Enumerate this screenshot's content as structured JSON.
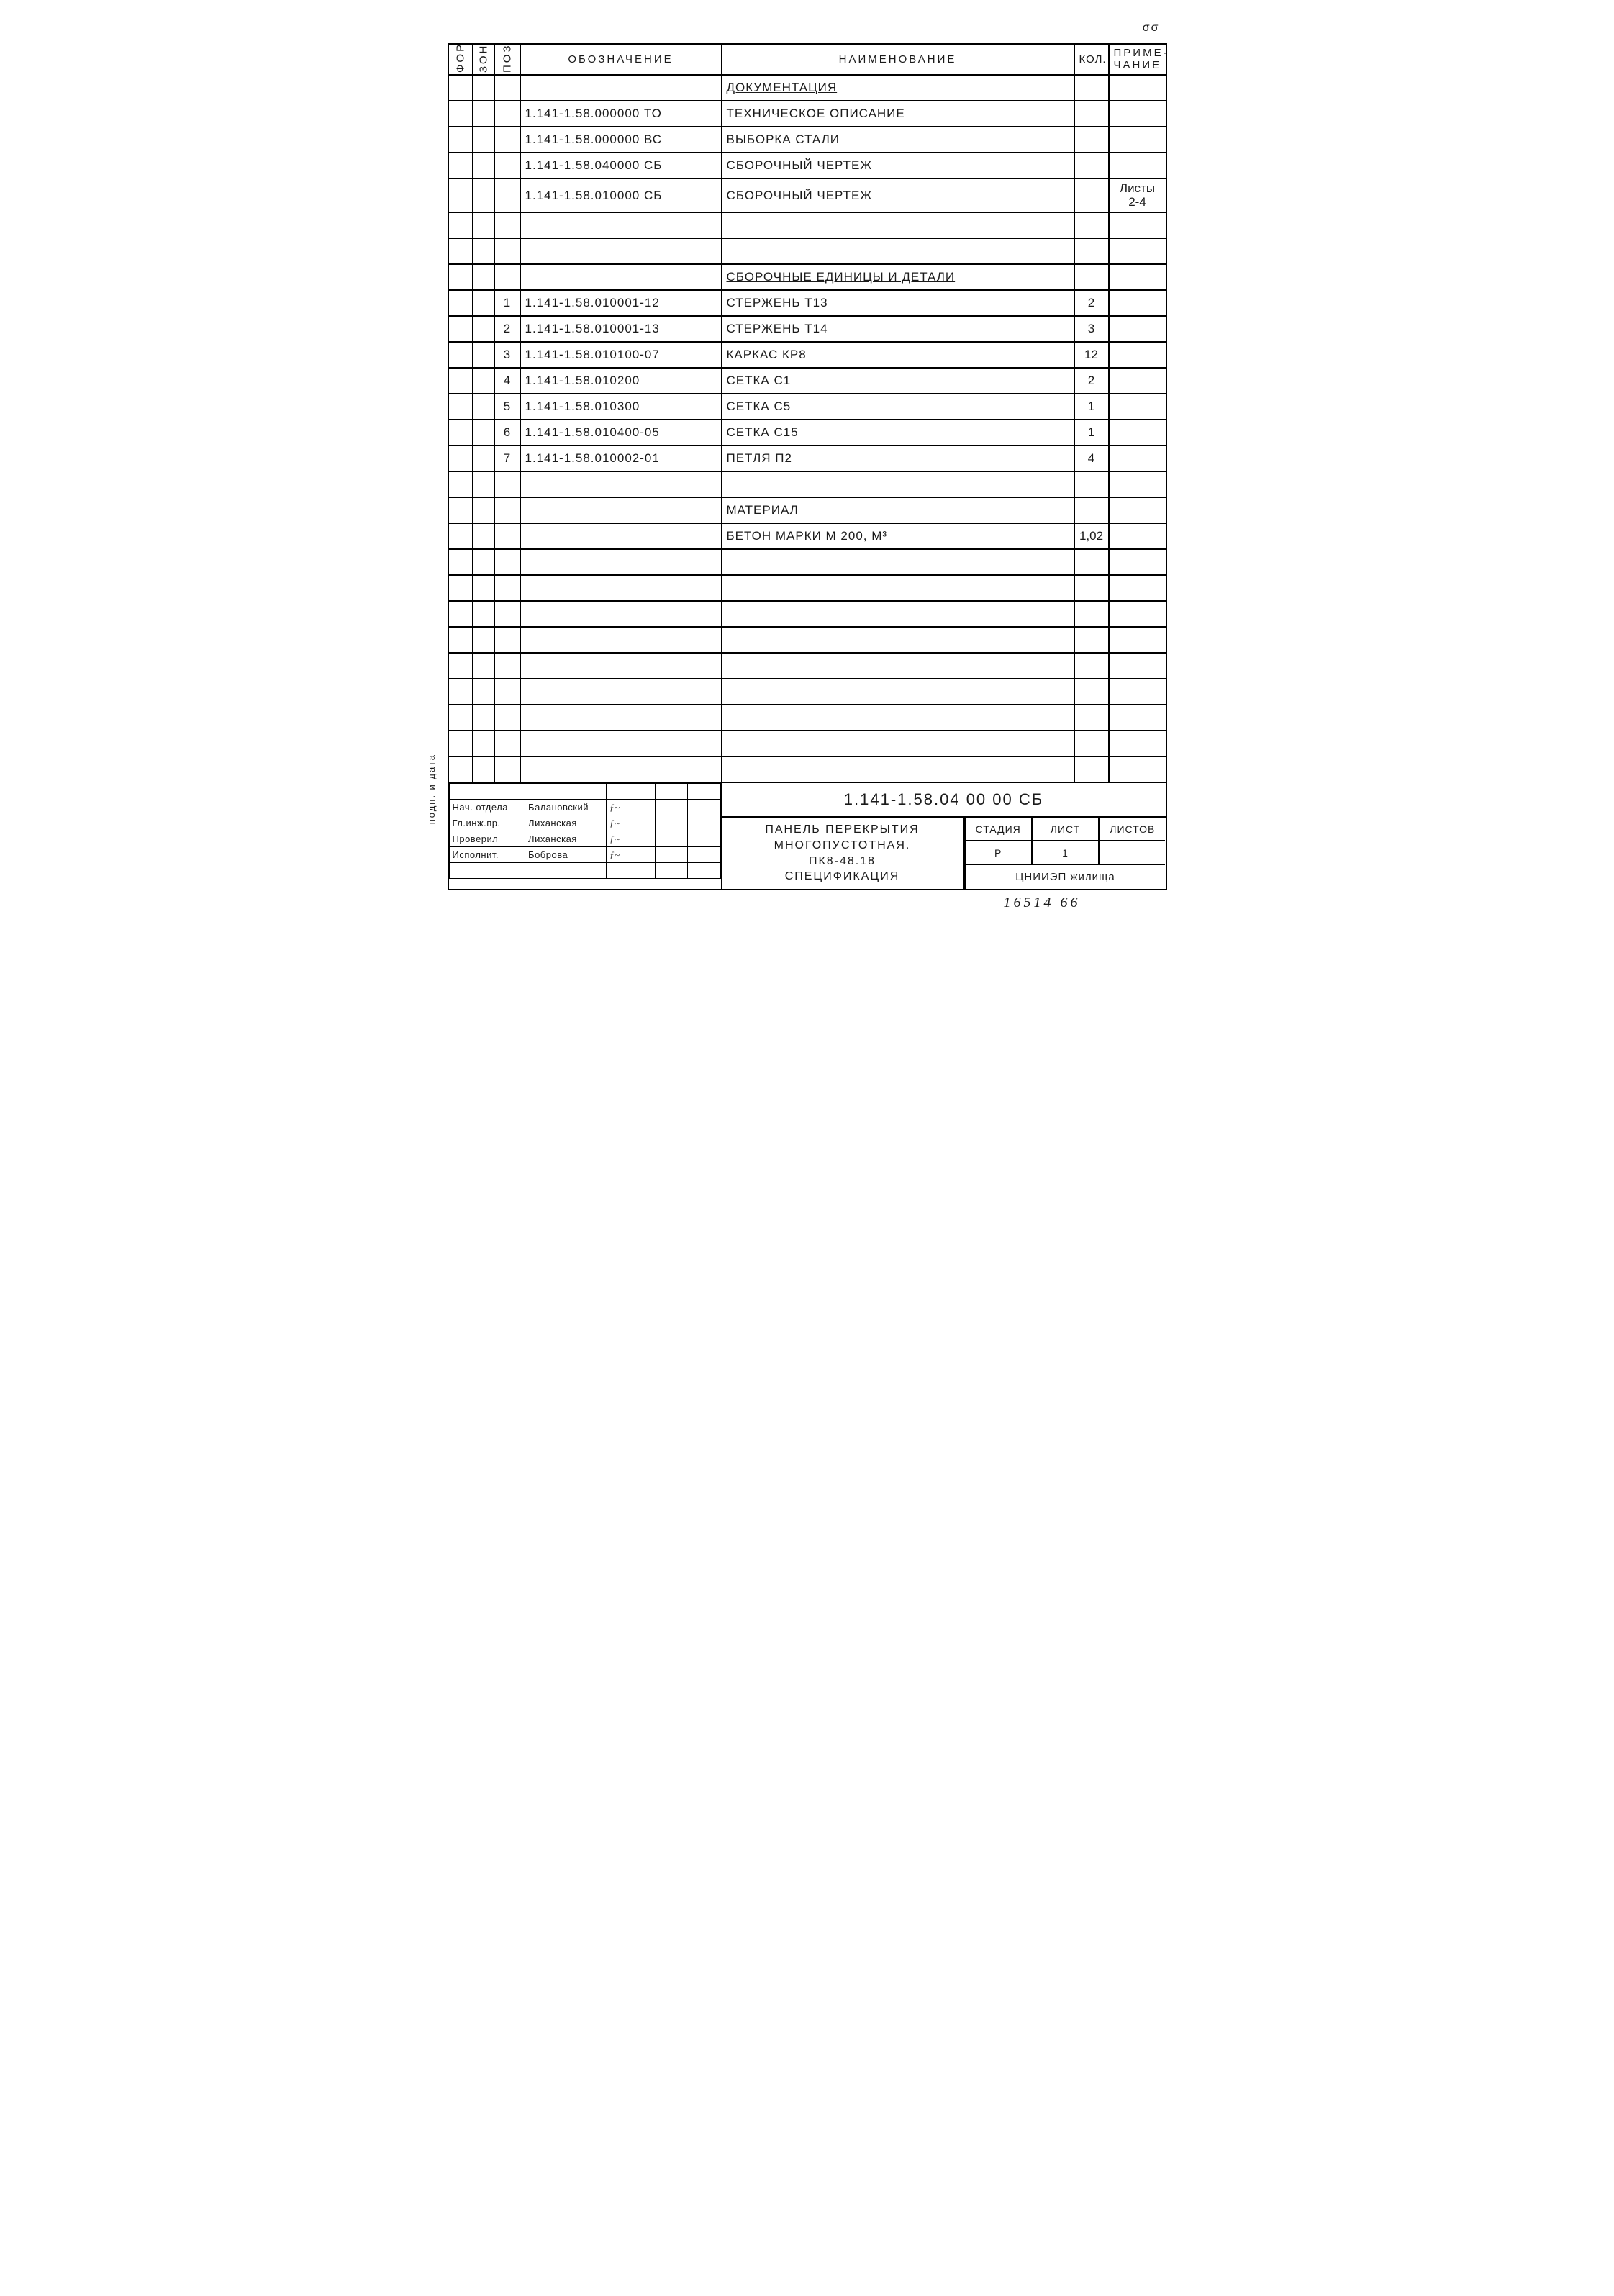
{
  "page_marker": "σσ",
  "side_label": "подп. и дата",
  "headers": {
    "format": "Формат",
    "zone": "Зона",
    "pos": "Позиц.",
    "designation": "Обозначение",
    "name": "Наименование",
    "qty": "Кол.",
    "note": "Приме-\nчание"
  },
  "rows": [
    {
      "pos": "",
      "desig": "",
      "name": "Документация",
      "qty": "",
      "note": "",
      "section": true
    },
    {
      "pos": "",
      "desig": "1.141-1.58.000000  ТО",
      "name": "Техническое описание",
      "qty": "",
      "note": ""
    },
    {
      "pos": "",
      "desig": "1.141-1.58.000000  ВС",
      "name": "Выборка  стали",
      "qty": "",
      "note": ""
    },
    {
      "pos": "",
      "desig": "1.141-1.58.040000  СБ",
      "name": "Сборочный чертеж",
      "qty": "",
      "note": ""
    },
    {
      "pos": "",
      "desig": "1.141-1.58.010000  СБ",
      "name": "Сборочный чертеж",
      "qty": "",
      "note": "Листы\n2-4"
    },
    {
      "pos": "",
      "desig": "",
      "name": "",
      "qty": "",
      "note": ""
    },
    {
      "pos": "",
      "desig": "",
      "name": "",
      "qty": "",
      "note": ""
    },
    {
      "pos": "",
      "desig": "",
      "name": "Сборочные единицы и детали",
      "qty": "",
      "note": "",
      "section": true
    },
    {
      "pos": "1",
      "desig": "1.141-1.58.010001-12",
      "name": "Стержень  Т13",
      "qty": "2",
      "note": ""
    },
    {
      "pos": "2",
      "desig": "1.141-1.58.010001-13",
      "name": "Стержень  Т14",
      "qty": "3",
      "note": ""
    },
    {
      "pos": "3",
      "desig": "1.141-1.58.010100-07",
      "name": "Каркас    КР8",
      "qty": "12",
      "note": ""
    },
    {
      "pos": "4",
      "desig": "1.141-1.58.010200",
      "name": "Сетка     С1",
      "qty": "2",
      "note": ""
    },
    {
      "pos": "5",
      "desig": "1.141-1.58.010300",
      "name": "Сетка     С5",
      "qty": "1",
      "note": ""
    },
    {
      "pos": "6",
      "desig": "1.141-1.58.010400-05",
      "name": "Сетка     С15",
      "qty": "1",
      "note": ""
    },
    {
      "pos": "7",
      "desig": "1.141-1.58.010002-01",
      "name": "Петля     П2",
      "qty": "4",
      "note": ""
    },
    {
      "pos": "",
      "desig": "",
      "name": "",
      "qty": "",
      "note": ""
    },
    {
      "pos": "",
      "desig": "",
      "name": "Материал",
      "qty": "",
      "note": "",
      "section": true
    },
    {
      "pos": "",
      "desig": "",
      "name": "Бетон  марки  М 200, м³",
      "qty": "1,02",
      "note": ""
    },
    {
      "pos": "",
      "desig": "",
      "name": "",
      "qty": "",
      "note": ""
    },
    {
      "pos": "",
      "desig": "",
      "name": "",
      "qty": "",
      "note": ""
    },
    {
      "pos": "",
      "desig": "",
      "name": "",
      "qty": "",
      "note": ""
    },
    {
      "pos": "",
      "desig": "",
      "name": "",
      "qty": "",
      "note": ""
    },
    {
      "pos": "",
      "desig": "",
      "name": "",
      "qty": "",
      "note": ""
    },
    {
      "pos": "",
      "desig": "",
      "name": "",
      "qty": "",
      "note": ""
    },
    {
      "pos": "",
      "desig": "",
      "name": "",
      "qty": "",
      "note": ""
    },
    {
      "pos": "",
      "desig": "",
      "name": "",
      "qty": "",
      "note": ""
    },
    {
      "pos": "",
      "desig": "",
      "name": "",
      "qty": "",
      "note": ""
    }
  ],
  "titleblock": {
    "left_rows": [
      [
        "",
        "",
        "",
        "",
        ""
      ],
      [
        "Нач. отдела",
        "Балановский",
        "~",
        "",
        ""
      ],
      [
        "Гл.инж.пр.",
        "Лиханская",
        "~",
        "",
        ""
      ],
      [
        "Проверил",
        "Лиханская",
        "~",
        "",
        ""
      ],
      [
        "Исполнит.",
        "Боброва",
        "~",
        "",
        ""
      ],
      [
        "",
        "",
        "",
        "",
        ""
      ]
    ],
    "doc_number": "1.141-1.58.04 00 00 СБ",
    "description": "Панель перекрытия\nмногопустотная.\nПК8-48.18\nСпецификация",
    "meta": {
      "stage_h": "Стадия",
      "sheet_h": "Лист",
      "sheets_h": "Листов",
      "stage": "Р",
      "sheet": "1",
      "sheets": ""
    },
    "org": "ЦНИИЭП жилища"
  },
  "footer": "16514   66"
}
